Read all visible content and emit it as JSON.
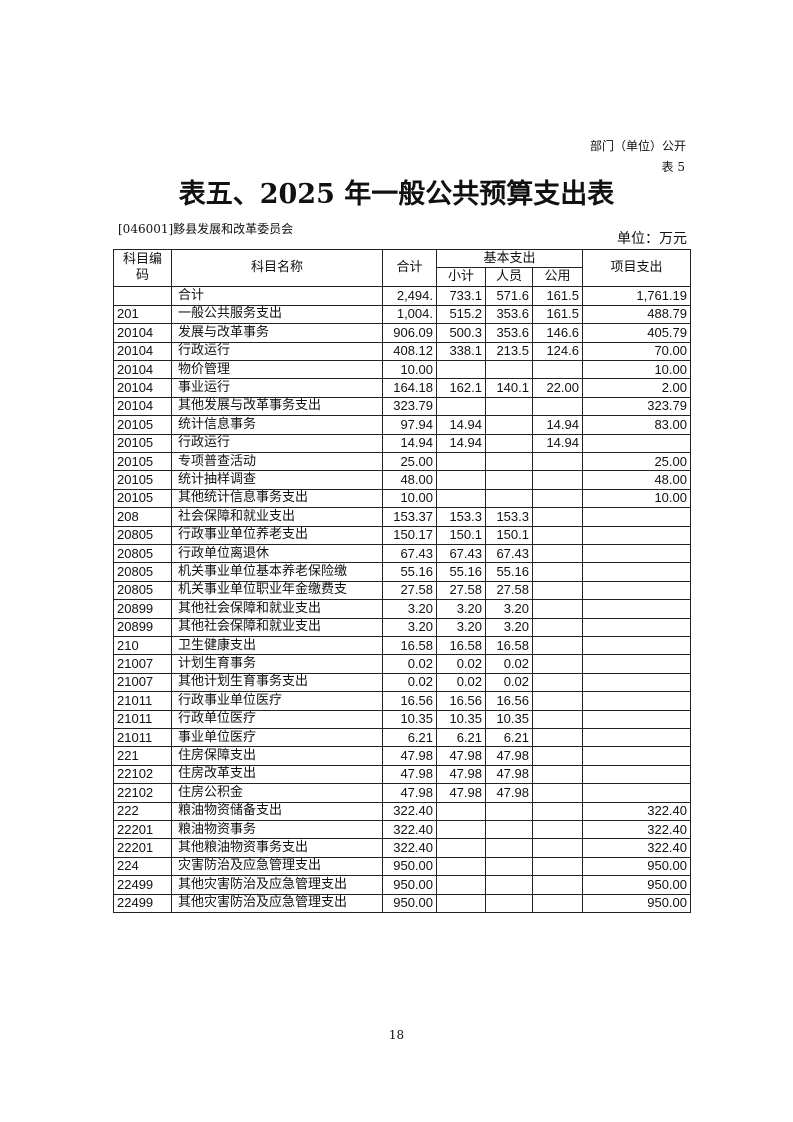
{
  "header": {
    "publicity_label": "部门（单位）公开",
    "table_number": "表 5",
    "title": "表五、2025 年一般公共预算支出表",
    "unit_name": "[046001]黟县发展和改革委员会",
    "unit_label": "单位：万元"
  },
  "table": {
    "headers": {
      "code": "科目编码",
      "name": "科目名称",
      "total": "合计",
      "basic": "基本支出",
      "subtotal": "小计",
      "personnel": "人员",
      "public": "公用",
      "project": "项目支出"
    },
    "rows": [
      [
        "",
        "合计",
        "2,494.",
        "733.1",
        "571.6",
        "161.5",
        "1,761.19"
      ],
      [
        "201",
        "一般公共服务支出",
        "1,004.",
        "515.2",
        "353.6",
        "161.5",
        "488.79"
      ],
      [
        "20104",
        "发展与改革事务",
        "906.09",
        "500.3",
        "353.6",
        "146.6",
        "405.79"
      ],
      [
        "20104",
        "行政运行",
        "408.12",
        "338.1",
        "213.5",
        "124.6",
        "70.00"
      ],
      [
        "20104",
        "物价管理",
        "10.00",
        "",
        "",
        "",
        "10.00"
      ],
      [
        "20104",
        "事业运行",
        "164.18",
        "162.1",
        "140.1",
        "22.00",
        "2.00"
      ],
      [
        "20104",
        "其他发展与改革事务支出",
        "323.79",
        "",
        "",
        "",
        "323.79"
      ],
      [
        "20105",
        "统计信息事务",
        "97.94",
        "14.94",
        "",
        "14.94",
        "83.00"
      ],
      [
        "20105",
        "行政运行",
        "14.94",
        "14.94",
        "",
        "14.94",
        ""
      ],
      [
        "20105",
        "专项普查活动",
        "25.00",
        "",
        "",
        "",
        "25.00"
      ],
      [
        "20105",
        "统计抽样调查",
        "48.00",
        "",
        "",
        "",
        "48.00"
      ],
      [
        "20105",
        "其他统计信息事务支出",
        "10.00",
        "",
        "",
        "",
        "10.00"
      ],
      [
        "208",
        "社会保障和就业支出",
        "153.37",
        "153.3",
        "153.3",
        "",
        ""
      ],
      [
        "20805",
        "行政事业单位养老支出",
        "150.17",
        "150.1",
        "150.1",
        "",
        ""
      ],
      [
        "20805",
        "行政单位离退休",
        "67.43",
        "67.43",
        "67.43",
        "",
        ""
      ],
      [
        "20805",
        "机关事业单位基本养老保险缴",
        "55.16",
        "55.16",
        "55.16",
        "",
        ""
      ],
      [
        "20805",
        "机关事业单位职业年金缴费支",
        "27.58",
        "27.58",
        "27.58",
        "",
        ""
      ],
      [
        "20899",
        "其他社会保障和就业支出",
        "3.20",
        "3.20",
        "3.20",
        "",
        ""
      ],
      [
        "20899",
        "其他社会保障和就业支出",
        "3.20",
        "3.20",
        "3.20",
        "",
        ""
      ],
      [
        "210",
        "卫生健康支出",
        "16.58",
        "16.58",
        "16.58",
        "",
        ""
      ],
      [
        "21007",
        "计划生育事务",
        "0.02",
        "0.02",
        "0.02",
        "",
        ""
      ],
      [
        "21007",
        "其他计划生育事务支出",
        "0.02",
        "0.02",
        "0.02",
        "",
        ""
      ],
      [
        "21011",
        "行政事业单位医疗",
        "16.56",
        "16.56",
        "16.56",
        "",
        ""
      ],
      [
        "21011",
        "行政单位医疗",
        "10.35",
        "10.35",
        "10.35",
        "",
        ""
      ],
      [
        "21011",
        "事业单位医疗",
        "6.21",
        "6.21",
        "6.21",
        "",
        ""
      ],
      [
        "221",
        "住房保障支出",
        "47.98",
        "47.98",
        "47.98",
        "",
        ""
      ],
      [
        "22102",
        "住房改革支出",
        "47.98",
        "47.98",
        "47.98",
        "",
        ""
      ],
      [
        "22102",
        "住房公积金",
        "47.98",
        "47.98",
        "47.98",
        "",
        ""
      ],
      [
        "222",
        "粮油物资储备支出",
        "322.40",
        "",
        "",
        "",
        "322.40"
      ],
      [
        "22201",
        "粮油物资事务",
        "322.40",
        "",
        "",
        "",
        "322.40"
      ],
      [
        "22201",
        "其他粮油物资事务支出",
        "322.40",
        "",
        "",
        "",
        "322.40"
      ],
      [
        "224",
        "灾害防治及应急管理支出",
        "950.00",
        "",
        "",
        "",
        "950.00"
      ],
      [
        "22499",
        "其他灾害防治及应急管理支出",
        "950.00",
        "",
        "",
        "",
        "950.00"
      ],
      [
        "22499",
        "其他灾害防治及应急管理支出",
        "950.00",
        "",
        "",
        "",
        "950.00"
      ]
    ]
  },
  "footer": {
    "page_number": "18"
  }
}
